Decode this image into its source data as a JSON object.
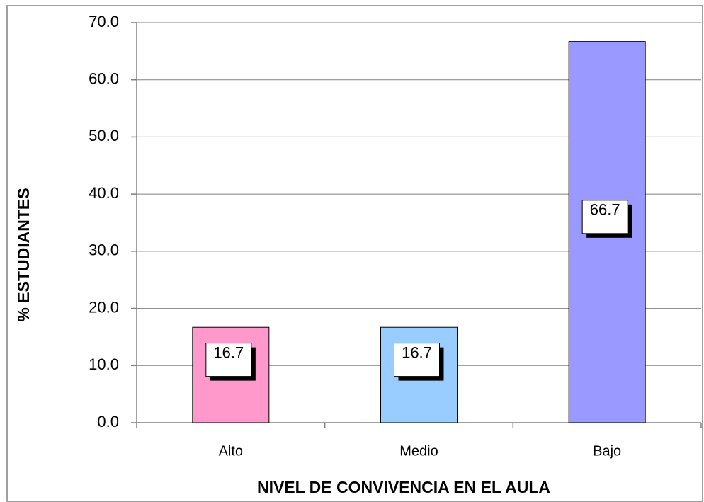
{
  "chart_data": {
    "type": "bar",
    "x_label": "NIVEL  DE  CONVIVENCIA EN EL  AULA",
    "y_label": "% ESTUDIANTES",
    "categories": [
      "Alto",
      "Medio",
      "Bajo"
    ],
    "values": [
      16.7,
      16.7,
      66.7
    ],
    "colors": [
      "#ff99cc",
      "#99ccff",
      "#9999ff"
    ],
    "ylim": [
      0,
      70
    ],
    "yticks": [
      {
        "value": 0,
        "label": "0.0"
      },
      {
        "value": 10,
        "label": "10.0"
      },
      {
        "value": 20,
        "label": "20.0"
      },
      {
        "value": 30,
        "label": "30.0"
      },
      {
        "value": 40,
        "label": "40.0"
      },
      {
        "value": 50,
        "label": "50.0"
      },
      {
        "value": 60,
        "label": "60.0"
      },
      {
        "value": 70,
        "label": "70.0"
      }
    ],
    "grid": true
  }
}
